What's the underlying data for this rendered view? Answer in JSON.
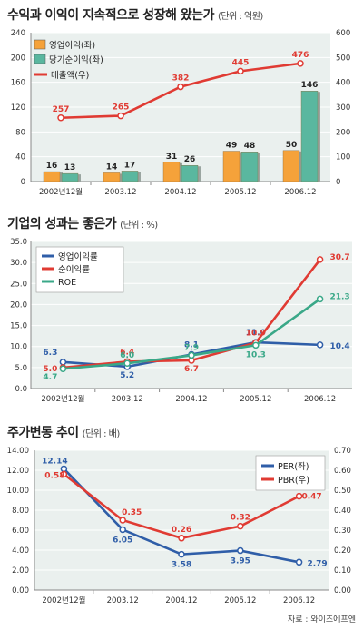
{
  "colors": {
    "panel_bg": "#eaf0ee",
    "grid": "#ffffff",
    "orange": "#f5a23a",
    "teal": "#5ab79f",
    "red": "#e03b33",
    "blue": "#2f5ea8",
    "green": "#3aa888"
  },
  "chart_data": [
    {
      "type": "bar",
      "title": "수익과 이익이 지속적으로 성장해 왔는가",
      "unit": "(단위 : 억원)",
      "categories": [
        "2002년12월",
        "2003.12",
        "2004.12",
        "2005.12",
        "2006.12"
      ],
      "y_left_ticks": [
        "240",
        "200",
        "160",
        "120",
        "80",
        "40",
        "0"
      ],
      "y_right_ticks": [
        "600",
        "500",
        "400",
        "300",
        "200",
        "100",
        "0"
      ],
      "ylim_left": [
        0,
        240
      ],
      "ylim_right": [
        0,
        600
      ],
      "legend": [
        "영업이익(좌)",
        "당기순이익(좌)",
        "매출액(우)"
      ],
      "series": [
        {
          "name": "영업이익(좌)",
          "axis": "left",
          "values": [
            16,
            14,
            31,
            49,
            50
          ],
          "labels": [
            "16",
            "14",
            "31",
            "49",
            "50"
          ]
        },
        {
          "name": "당기순이익(좌)",
          "axis": "left",
          "values": [
            13,
            17,
            26,
            48,
            146
          ],
          "labels": [
            "13",
            "17",
            "26",
            "48",
            "146"
          ]
        },
        {
          "name": "매출액(우)",
          "axis": "right",
          "values": [
            257,
            265,
            382,
            445,
            476
          ],
          "labels": [
            "257",
            "265",
            "382",
            "445",
            "476"
          ]
        }
      ]
    },
    {
      "type": "line",
      "title": "기업의 성과는 좋은가",
      "unit": "(단위 : %)",
      "categories": [
        "2002년12월",
        "2003.12",
        "2004.12",
        "2005.12",
        "2006.12"
      ],
      "y_ticks": [
        "35.0",
        "30.0",
        "25.0",
        "20.0",
        "15.0",
        "10.0",
        "5.0",
        "0.0"
      ],
      "ylim": [
        0,
        35
      ],
      "legend": [
        "영업이익률",
        "순이익률",
        "ROE"
      ],
      "series": [
        {
          "name": "영업이익률",
          "values": [
            6.3,
            5.2,
            8.1,
            11.0,
            10.4
          ],
          "labels": [
            "6.3",
            "5.2",
            "8.1",
            "11.0",
            "10.4"
          ]
        },
        {
          "name": "순이익률",
          "values": [
            5.0,
            6.4,
            6.7,
            10.9,
            30.7
          ],
          "labels": [
            "5.0",
            "6.4",
            "6.7",
            "10.9",
            "30.7"
          ]
        },
        {
          "name": "ROE",
          "values": [
            4.7,
            6.0,
            7.9,
            10.3,
            21.3
          ],
          "labels": [
            "4.7",
            "6.0",
            "7.9",
            "10.3",
            "21.3"
          ]
        }
      ]
    },
    {
      "type": "line",
      "title": "주가변동 추이",
      "unit": "(단위 : 배)",
      "categories": [
        "2002년12월",
        "2003.12",
        "2004.12",
        "2005.12",
        "2006.12"
      ],
      "y_left_ticks": [
        "14.00",
        "12.00",
        "10.00",
        "8.00",
        "6.00",
        "4.00",
        "2.00",
        "0.00"
      ],
      "y_right_ticks": [
        "0.70",
        "0.60",
        "0.50",
        "0.40",
        "0.30",
        "0.20",
        "0.10",
        "0.00"
      ],
      "ylim_left": [
        0,
        14
      ],
      "ylim_right": [
        0,
        0.7
      ],
      "legend": [
        "PER(좌)",
        "PBR(우)"
      ],
      "series": [
        {
          "name": "PER(좌)",
          "axis": "left",
          "values": [
            12.14,
            6.05,
            3.58,
            3.95,
            2.79
          ],
          "labels": [
            "12.14",
            "6.05",
            "3.58",
            "3.95",
            "2.79"
          ]
        },
        {
          "name": "PBR(우)",
          "axis": "right",
          "values": [
            0.58,
            0.35,
            0.26,
            0.32,
            0.47
          ],
          "labels": [
            "0.58",
            "0.35",
            "0.26",
            "0.32",
            "0.47"
          ]
        }
      ]
    }
  ],
  "source_text": "자료 : 와이즈에프엔"
}
